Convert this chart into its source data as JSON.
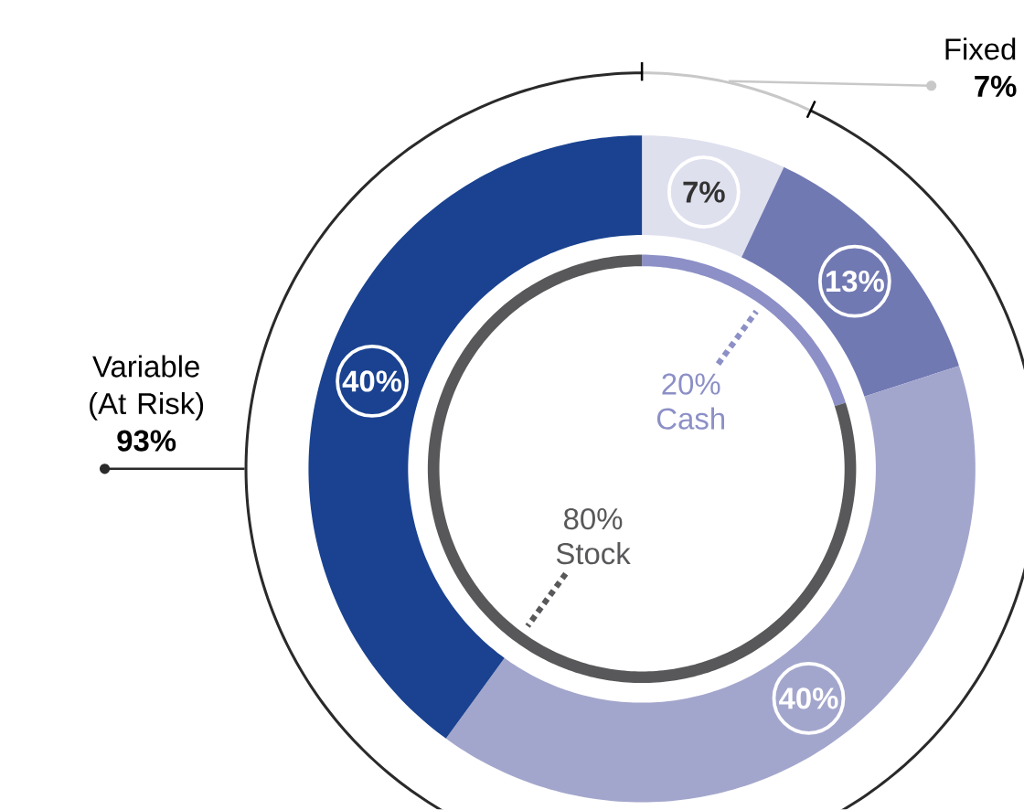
{
  "chart_data": [
    {
      "type": "donut",
      "categories": [
        null,
        null,
        null,
        null
      ],
      "values": [
        7,
        13,
        40,
        40
      ],
      "colors": [
        "#dfe0ee",
        "#7179b3",
        "#a3a6cc",
        "#1a4290"
      ],
      "value_labels": [
        "7%",
        "13%",
        "40%",
        "40%"
      ]
    },
    {
      "type": "donut",
      "categories": [
        "Cash",
        "Stock"
      ],
      "values": [
        20,
        80
      ],
      "colors": [
        "#8c90c6",
        "#58585a"
      ],
      "value_labels": [
        "20%",
        "80%"
      ]
    },
    {
      "type": "donut",
      "categories": [
        "Fixed",
        "Variable (At Risk)"
      ],
      "values": [
        7,
        93
      ],
      "colors": [
        "#c8c8c8",
        "#2a2a2a"
      ],
      "value_labels": [
        "7%",
        "93%"
      ]
    }
  ]
}
